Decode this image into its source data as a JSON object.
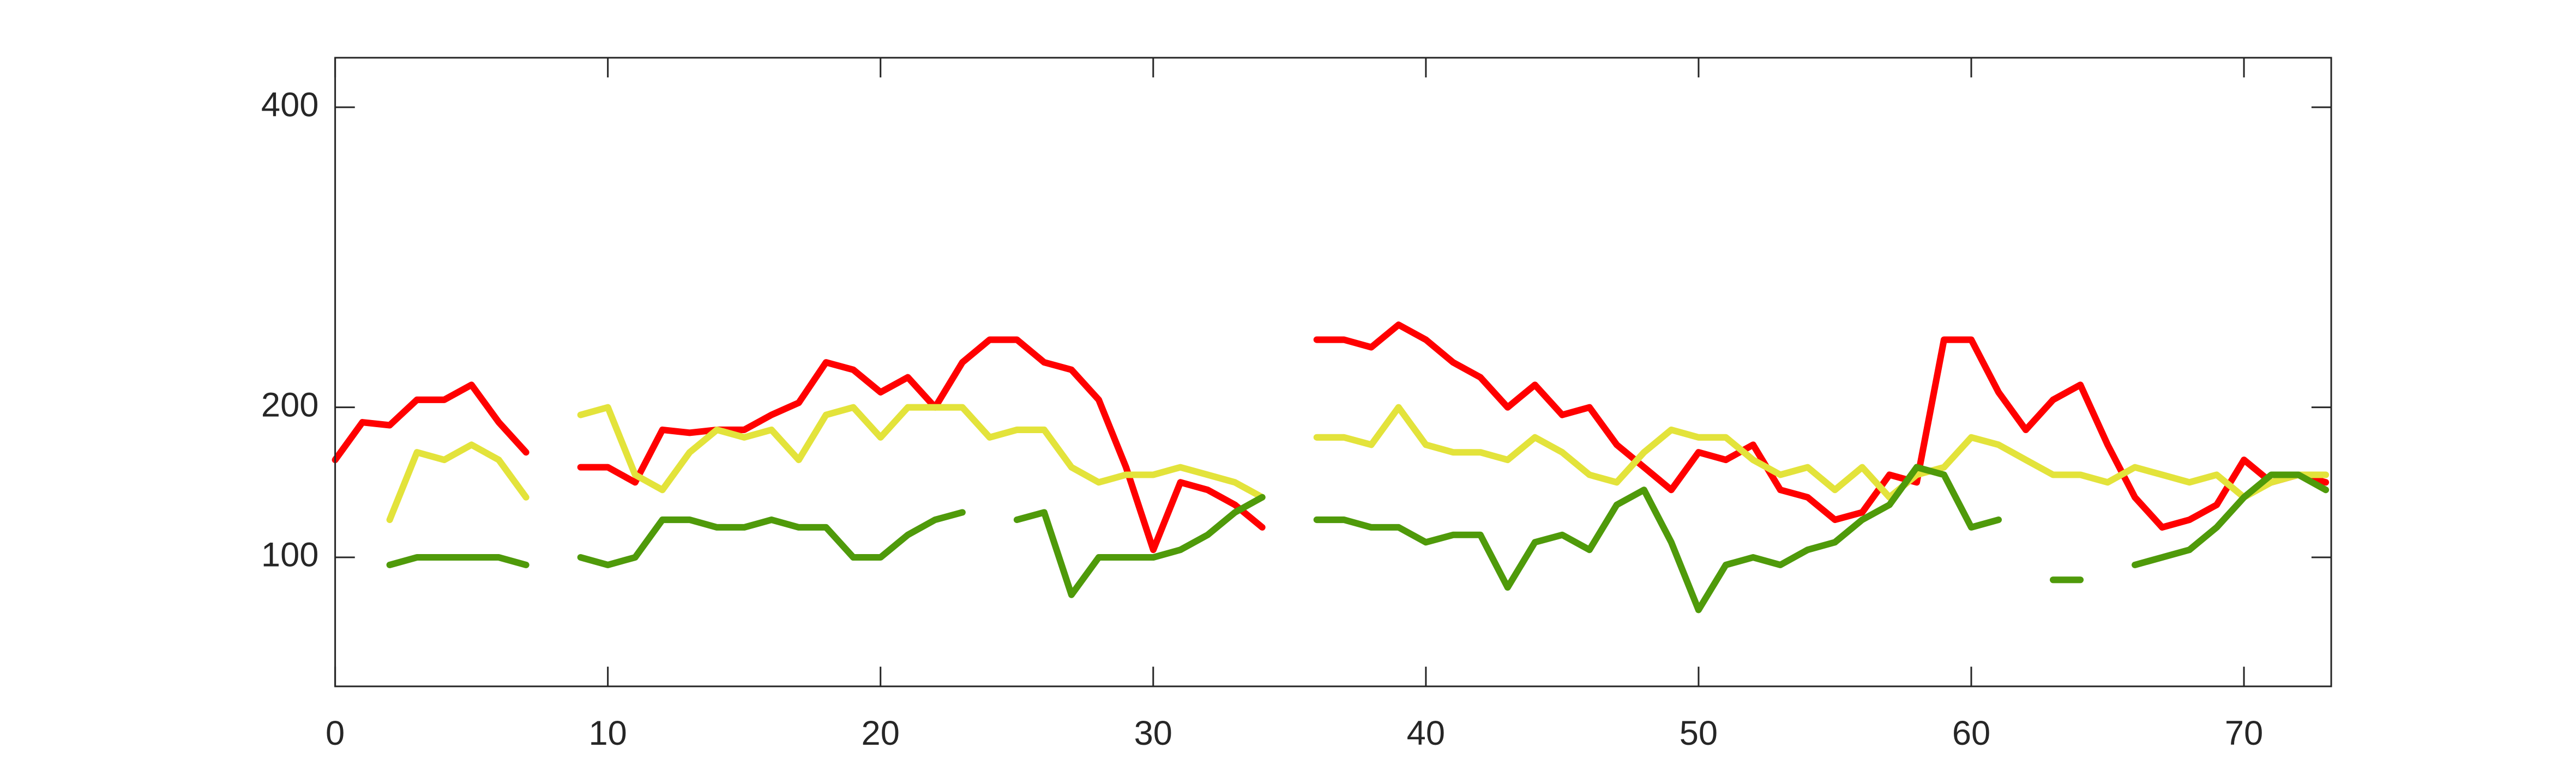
{
  "chart_data": {
    "type": "line",
    "x": [
      0,
      1,
      2,
      3,
      4,
      5,
      6,
      7,
      8,
      9,
      10,
      11,
      12,
      13,
      14,
      15,
      16,
      17,
      18,
      19,
      20,
      21,
      22,
      23,
      24,
      25,
      26,
      27,
      28,
      29,
      30,
      31,
      32,
      33,
      34,
      35,
      36,
      37,
      38,
      39,
      40,
      41,
      42,
      43,
      44,
      45,
      46,
      47,
      48,
      49,
      50,
      51,
      52,
      53,
      54,
      55,
      56,
      57,
      58,
      59,
      60,
      61,
      62,
      63,
      64,
      65,
      66,
      67,
      68,
      69,
      70,
      71,
      72,
      73
    ],
    "series": [
      {
        "color": "#ff0000",
        "values": [
          165,
          190,
          188,
          205,
          205,
          215,
          190,
          170,
          null,
          160,
          160,
          150,
          185,
          183,
          185,
          185,
          195,
          203,
          230,
          225,
          210,
          220,
          200,
          230,
          245,
          245,
          230,
          225,
          205,
          160,
          105,
          150,
          145,
          135,
          120,
          null,
          245,
          245,
          240,
          255,
          245,
          230,
          220,
          200,
          215,
          195,
          200,
          175,
          160,
          145,
          170,
          165,
          175,
          145,
          140,
          125,
          130,
          155,
          150,
          245,
          245,
          210,
          185,
          205,
          215,
          175,
          140,
          120,
          125,
          135,
          165,
          150,
          155,
          150
        ]
      },
      {
        "color": "#e3e33b",
        "values": [
          null,
          null,
          125,
          170,
          165,
          175,
          165,
          140,
          null,
          195,
          200,
          155,
          145,
          170,
          185,
          180,
          185,
          165,
          195,
          200,
          180,
          200,
          200,
          200,
          180,
          185,
          185,
          160,
          150,
          155,
          155,
          160,
          155,
          150,
          140,
          null,
          180,
          180,
          175,
          200,
          175,
          170,
          170,
          165,
          180,
          170,
          155,
          150,
          170,
          185,
          180,
          180,
          165,
          155,
          160,
          145,
          160,
          140,
          155,
          160,
          180,
          175,
          165,
          155,
          155,
          150,
          160,
          155,
          150,
          155,
          140,
          150,
          155,
          155
        ]
      },
      {
        "color": "#4f9a0a",
        "values": [
          null,
          null,
          95,
          100,
          100,
          100,
          100,
          95,
          null,
          100,
          95,
          100,
          125,
          125,
          120,
          120,
          125,
          120,
          120,
          100,
          100,
          115,
          125,
          130,
          null,
          125,
          130,
          75,
          100,
          100,
          100,
          105,
          115,
          130,
          140,
          null,
          125,
          125,
          120,
          120,
          110,
          115,
          115,
          80,
          110,
          115,
          105,
          135,
          145,
          110,
          65,
          95,
          100,
          95,
          105,
          110,
          125,
          135,
          160,
          155,
          120,
          125,
          null,
          85,
          85,
          null,
          95,
          100,
          105,
          120,
          140,
          155,
          155,
          145
        ]
      }
    ],
    "xlim": [
      0,
      73.2
    ],
    "ylim": [
      14,
      433
    ],
    "xticks": [
      0,
      10,
      20,
      30,
      40,
      50,
      60,
      70
    ],
    "yticks": [
      100,
      200,
      400
    ]
  }
}
